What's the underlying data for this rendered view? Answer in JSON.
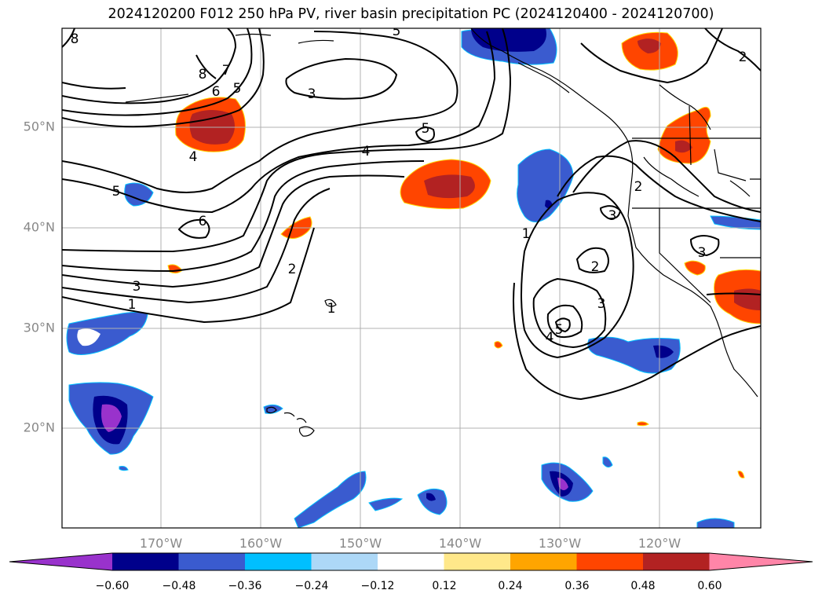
{
  "title": "2024120200 F012 250 hPa PV, river basin precipitation PC (2024120400 - 2024120700)",
  "lat_labels": [
    "50°N",
    "40°N",
    "30°N",
    "20°N"
  ],
  "lon_labels": [
    "170°W",
    "160°W",
    "150°W",
    "140°W",
    "130°W",
    "120°W"
  ],
  "colorbar": {
    "colors": [
      "#9932cc",
      "#00008b",
      "#3a5bcf",
      "#00bfff",
      "#add8f7",
      "#ffffff",
      "#ffe88a",
      "#ffa500",
      "#ff4500",
      "#b22222",
      "#ff85a8"
    ],
    "tick_labels": [
      "−0.60",
      "−0.48",
      "−0.36",
      "−0.24",
      "−0.12",
      "0.12",
      "0.24",
      "0.36",
      "0.48",
      "0.60"
    ]
  },
  "pv_labels": [
    "8",
    "8",
    "7",
    "6",
    "5",
    "5",
    "4",
    "4",
    "5",
    "3",
    "6",
    "2",
    "2",
    "1",
    "1",
    "3",
    "3",
    "2",
    "3",
    "1",
    "4",
    "5",
    "3",
    "2",
    "5"
  ]
}
